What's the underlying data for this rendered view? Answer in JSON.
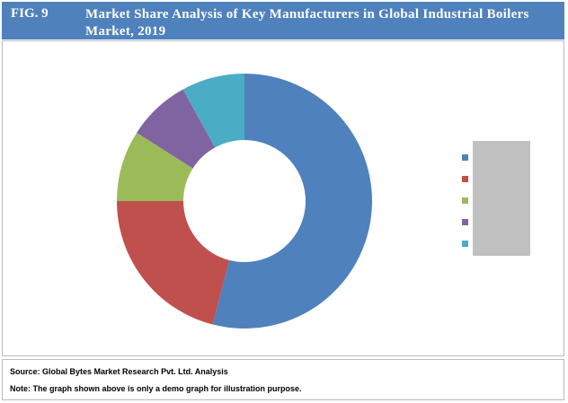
{
  "header": {
    "figure": "FIG. 9",
    "title": "Market Share Analysis of Key Manufacturers in Global Industrial Boilers Market, 2019"
  },
  "chart_data": {
    "type": "donut",
    "categories": [
      null,
      null,
      null,
      null,
      null
    ],
    "values": [
      54,
      21,
      9,
      8,
      8
    ],
    "colors": [
      "#4f81bd",
      "#c0504d",
      "#9bbb59",
      "#8064a2",
      "#4bacc6"
    ]
  },
  "footer": {
    "source": "Source: Global Bytes Market Research Pvt. Ltd. Analysis",
    "note": "Note: The graph shown above is only a demo graph for illustration purpose."
  }
}
